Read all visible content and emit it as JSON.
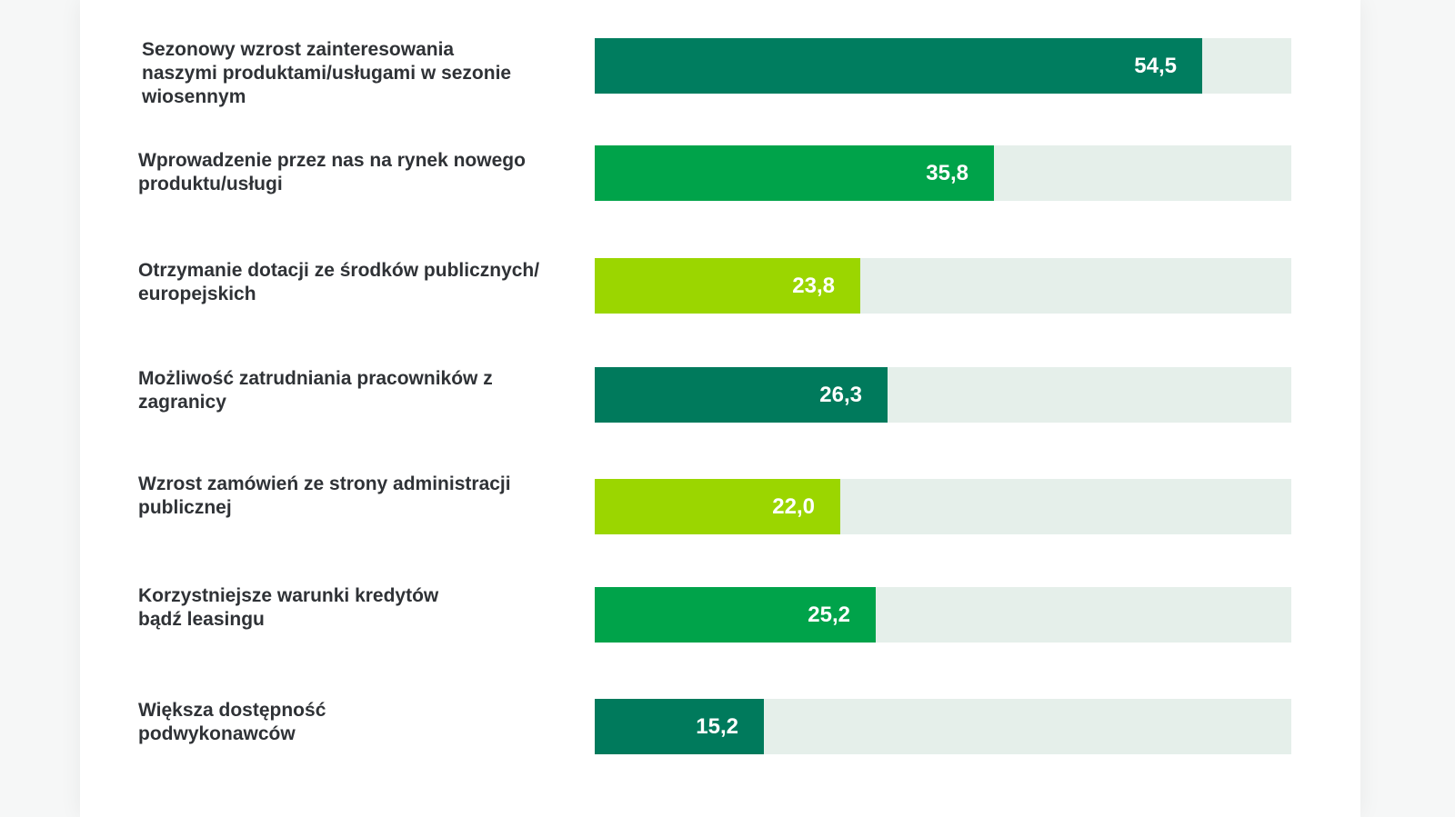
{
  "chart_data": {
    "type": "bar",
    "orientation": "horizontal",
    "title": "",
    "xlabel": "",
    "ylabel": "",
    "xlim": [
      0,
      62.5
    ],
    "grid": false,
    "categories": [
      "Sezonowy wzrost zainteresowania naszymi produktami/usługami w sezonie wiosennym",
      "Wprowadzenie przez nas na rynek nowego produktu/usługi",
      "Otrzymanie dotacji ze środków publicznych/ europejskich",
      "Możliwość zatrudniania pracowników z zagranicy",
      "Wzrost zamówień ze strony administracji publicznej",
      "Korzystniejsze warunki kredytów bądź leasingu",
      "Większa dostępność podwykonawców"
    ],
    "values": [
      54.5,
      35.8,
      23.8,
      26.3,
      22.0,
      25.2,
      15.2
    ],
    "value_labels": [
      "54,5",
      "35,8",
      "23,8",
      "26,3",
      "22,0",
      "25,2",
      "15,2"
    ],
    "bar_colors": [
      "#007d5f",
      "#00a34a",
      "#9bd600",
      "#007a5c",
      "#9bd600",
      "#00a34a",
      "#007a5c"
    ],
    "track_color": "#e5efea"
  }
}
